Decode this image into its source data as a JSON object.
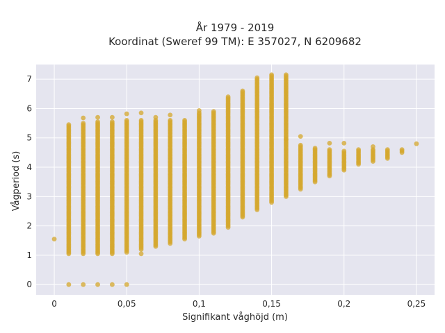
{
  "chart_data": {
    "type": "scatter",
    "title_line1": "År 1979 - 2019",
    "title_line2": "Koordinat (Sweref 99 TM): E 357027, N 6209682",
    "xlabel": "Signifikant våghöjd (m)",
    "ylabel": "Vågperiod (s)",
    "xlim": [
      -0.0125,
      0.2625
    ],
    "ylim": [
      -0.35,
      7.5
    ],
    "grid": true,
    "x_ticks": [
      {
        "value": 0,
        "label": "0"
      },
      {
        "value": 0.05,
        "label": "0,05"
      },
      {
        "value": 0.1,
        "label": "0,1"
      },
      {
        "value": 0.15,
        "label": "0,15"
      },
      {
        "value": 0.2,
        "label": "0,2"
      },
      {
        "value": 0.25,
        "label": "0,25"
      }
    ],
    "y_ticks": [
      {
        "value": 0,
        "label": "0"
      },
      {
        "value": 1,
        "label": "1"
      },
      {
        "value": 2,
        "label": "2"
      },
      {
        "value": 3,
        "label": "3"
      },
      {
        "value": 4,
        "label": "4"
      },
      {
        "value": 5,
        "label": "5"
      },
      {
        "value": 6,
        "label": "6"
      },
      {
        "value": 7,
        "label": "7"
      }
    ],
    "colors": {
      "marker": "#d4a72c",
      "plot_background": "#e5e5ef",
      "grid": "#ffffff",
      "page_background": "#ffffff"
    },
    "columns": [
      {
        "x": 0.01,
        "y_min": 1.05,
        "y_max": 5.45,
        "outliers": [
          0
        ]
      },
      {
        "x": 0.02,
        "y_min": 1.05,
        "y_max": 5.5,
        "outliers": [
          0,
          5.68
        ]
      },
      {
        "x": 0.03,
        "y_min": 1.05,
        "y_max": 5.55,
        "outliers": [
          0,
          5.7
        ]
      },
      {
        "x": 0.04,
        "y_min": 1.05,
        "y_max": 5.55,
        "outliers": [
          0,
          5.7
        ]
      },
      {
        "x": 0.05,
        "y_min": 1.1,
        "y_max": 5.6,
        "outliers": [
          0,
          5.82
        ]
      },
      {
        "x": 0.06,
        "y_min": 1.2,
        "y_max": 5.6,
        "outliers": [
          1.05,
          5.85
        ]
      },
      {
        "x": 0.07,
        "y_min": 1.3,
        "y_max": 5.6,
        "outliers": [
          5.7
        ]
      },
      {
        "x": 0.08,
        "y_min": 1.4,
        "y_max": 5.6,
        "outliers": [
          5.78
        ]
      },
      {
        "x": 0.09,
        "y_min": 1.55,
        "y_max": 5.6,
        "outliers": []
      },
      {
        "x": 0.1,
        "y_min": 1.65,
        "y_max": 5.85,
        "outliers": [
          5.93
        ]
      },
      {
        "x": 0.11,
        "y_min": 1.75,
        "y_max": 5.9,
        "outliers": []
      },
      {
        "x": 0.12,
        "y_min": 1.95,
        "y_max": 6.4,
        "outliers": []
      },
      {
        "x": 0.13,
        "y_min": 2.3,
        "y_max": 6.6,
        "outliers": []
      },
      {
        "x": 0.14,
        "y_min": 2.55,
        "y_max": 7.05,
        "outliers": []
      },
      {
        "x": 0.15,
        "y_min": 2.8,
        "y_max": 7.15,
        "outliers": []
      },
      {
        "x": 0.16,
        "y_min": 3.0,
        "y_max": 7.15,
        "outliers": [
          4.95
        ]
      },
      {
        "x": 0.17,
        "y_min": 3.25,
        "y_max": 4.75,
        "outliers": [
          5.05
        ]
      },
      {
        "x": 0.18,
        "y_min": 3.5,
        "y_max": 4.65,
        "outliers": []
      },
      {
        "x": 0.19,
        "y_min": 3.7,
        "y_max": 4.6,
        "outliers": [
          4.82
        ]
      },
      {
        "x": 0.2,
        "y_min": 3.9,
        "y_max": 4.55,
        "outliers": [
          4.82
        ]
      },
      {
        "x": 0.21,
        "y_min": 4.1,
        "y_max": 4.6,
        "outliers": []
      },
      {
        "x": 0.22,
        "y_min": 4.2,
        "y_max": 4.6,
        "outliers": [
          4.7
        ]
      },
      {
        "x": 0.23,
        "y_min": 4.3,
        "y_max": 4.6,
        "outliers": []
      },
      {
        "x": 0.24,
        "y_min": 4.5,
        "y_max": 4.62,
        "outliers": []
      },
      {
        "x": 0.25,
        "y_min": 4.8,
        "y_max": 4.8,
        "outliers": []
      }
    ],
    "isolated_points": [
      {
        "x": 0,
        "y": 1.55
      }
    ]
  }
}
